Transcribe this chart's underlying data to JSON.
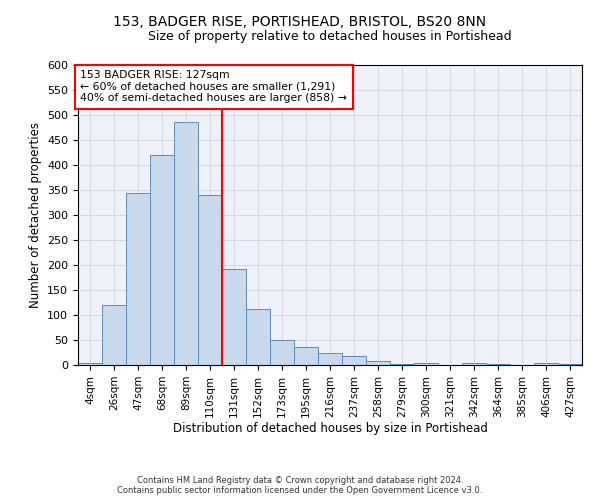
{
  "title": "153, BADGER RISE, PORTISHEAD, BRISTOL, BS20 8NN",
  "subtitle": "Size of property relative to detached houses in Portishead",
  "xlabel": "Distribution of detached houses by size in Portishead",
  "ylabel": "Number of detached properties",
  "categories": [
    "4sqm",
    "26sqm",
    "47sqm",
    "68sqm",
    "89sqm",
    "110sqm",
    "131sqm",
    "152sqm",
    "173sqm",
    "195sqm",
    "216sqm",
    "237sqm",
    "258sqm",
    "279sqm",
    "300sqm",
    "321sqm",
    "342sqm",
    "364sqm",
    "385sqm",
    "406sqm",
    "427sqm"
  ],
  "values": [
    5,
    120,
    345,
    420,
    487,
    340,
    193,
    112,
    50,
    36,
    25,
    19,
    8,
    2,
    4,
    1,
    4,
    2,
    0,
    4,
    2
  ],
  "bar_color": "#c9d9ec",
  "bar_edge_color": "#5b8db8",
  "annotation_line_color": "red",
  "annotation_text_line1": "153 BADGER RISE: 127sqm",
  "annotation_text_line2": "← 60% of detached houses are smaller (1,291)",
  "annotation_text_line3": "40% of semi-detached houses are larger (858) →",
  "annotation_box_color": "white",
  "annotation_box_edge_color": "red",
  "ylim": [
    0,
    600
  ],
  "yticks": [
    0,
    50,
    100,
    150,
    200,
    250,
    300,
    350,
    400,
    450,
    500,
    550,
    600
  ],
  "grid_color": "#d0d8e8",
  "background_color": "#eef2f8",
  "footer_line1": "Contains HM Land Registry data © Crown copyright and database right 2024.",
  "footer_line2": "Contains public sector information licensed under the Open Government Licence v3.0.",
  "bin_width": 21,
  "line_x_index": 6,
  "fig_width": 6.0,
  "fig_height": 5.0,
  "dpi": 100
}
